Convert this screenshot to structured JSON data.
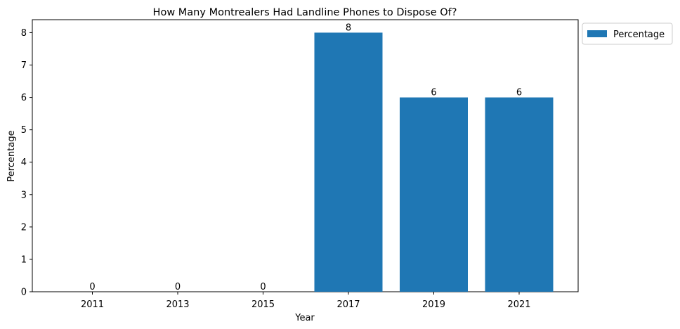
{
  "chart_data": {
    "type": "bar",
    "title": "How Many Montrealers Had Landline Phones to Dispose Of?",
    "xlabel": "Year",
    "ylabel": "Percentage",
    "categories": [
      "2011",
      "2013",
      "2015",
      "2017",
      "2019",
      "2021"
    ],
    "series": [
      {
        "name": "Percentage",
        "values": [
          0,
          0,
          0,
          8,
          6,
          6
        ]
      }
    ],
    "data_labels": [
      "0",
      "0",
      "0",
      "8",
      "6",
      "6"
    ],
    "ylim": [
      0,
      8.4
    ],
    "yticks": [
      0,
      1,
      2,
      3,
      4,
      5,
      6,
      7,
      8
    ],
    "grid": false,
    "legend_position": "outside-top-right",
    "bar_color": "#1f77b4"
  }
}
